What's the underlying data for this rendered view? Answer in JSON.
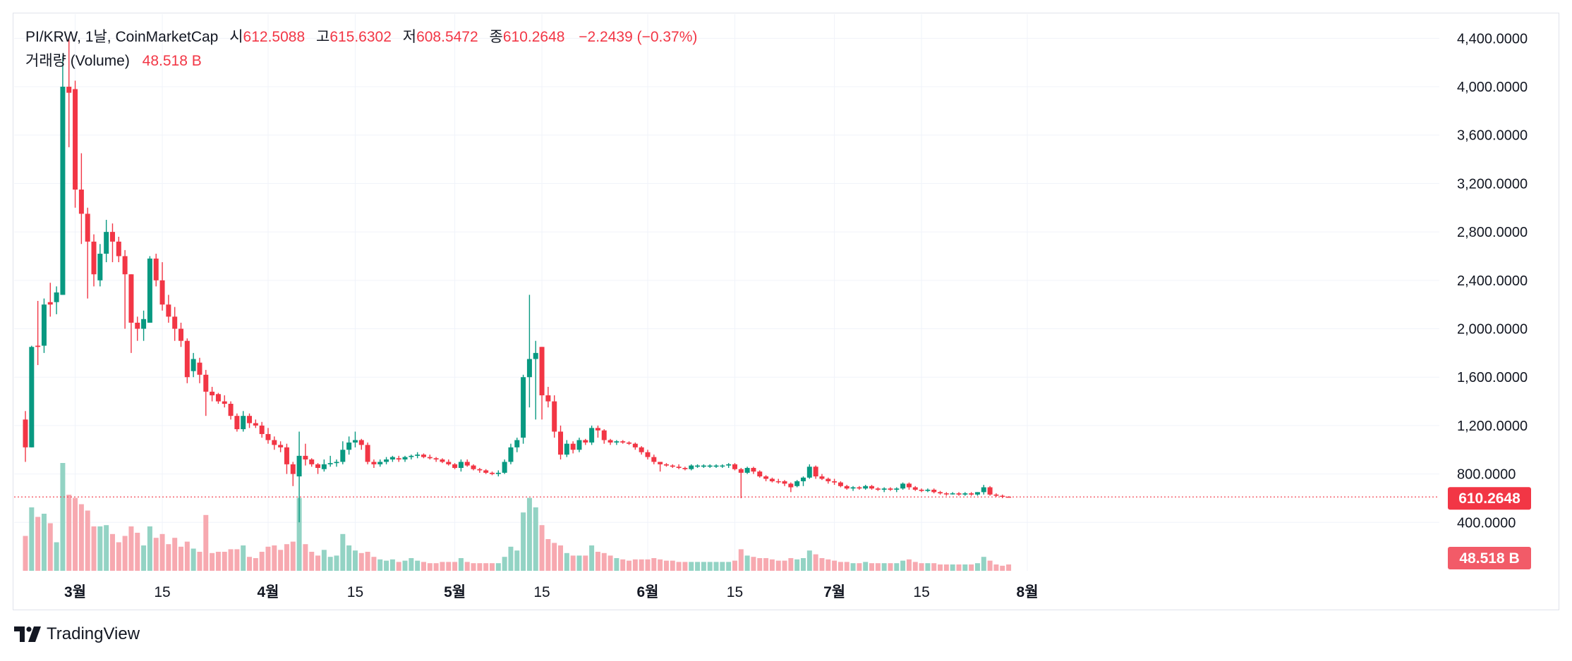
{
  "header": {
    "symbol_line": "PI/KRW, 1날, CoinMarketCap",
    "open_label": "시",
    "open_value": "612.5088",
    "high_label": "고",
    "high_value": "615.6302",
    "low_label": "저",
    "low_value": "608.5472",
    "close_label": "종",
    "close_value": "610.2648",
    "change": "−2.2439 (−0.37%)",
    "volume_label": "거래량 (Volume)",
    "volume_value": "48.518 B"
  },
  "brand": {
    "name": "TradingView",
    "icon": "tradingview-logo-icon"
  },
  "colors": {
    "up": "#089981",
    "down": "#f23645",
    "up_volume": "#93d3c4",
    "down_volume": "#f7a9b0",
    "grid": "#f0f3fa"
  },
  "chart_data": {
    "type": "candlestick",
    "price_axis_ticks": [
      400,
      800,
      1200,
      1600,
      2000,
      2400,
      2800,
      3200,
      3600,
      4000,
      4400
    ],
    "price_axis_labels": [
      "400.0000",
      "800.0000",
      "1,200.0000",
      "1,600.0000",
      "2,000.0000",
      "2,400.0000",
      "2,800.0000",
      "3,200.0000",
      "3,600.0000",
      "4,000.0000",
      "4,400.0000"
    ],
    "ylim": [
      0,
      4600
    ],
    "time_axis_ticks": [
      {
        "label": "3월",
        "day": 8,
        "major": true
      },
      {
        "label": "15",
        "day": 22,
        "major": false
      },
      {
        "label": "4월",
        "day": 39,
        "major": true
      },
      {
        "label": "15",
        "day": 53,
        "major": false
      },
      {
        "label": "5월",
        "day": 69,
        "major": true
      },
      {
        "label": "15",
        "day": 83,
        "major": false
      },
      {
        "label": "6월",
        "day": 100,
        "major": true
      },
      {
        "label": "15",
        "day": 114,
        "major": false
      },
      {
        "label": "7월",
        "day": 130,
        "major": true
      },
      {
        "label": "15",
        "day": 144,
        "major": false
      },
      {
        "label": "8월",
        "day": 161,
        "major": true
      }
    ],
    "last_price": {
      "value": 610.2648,
      "label": "610.2648"
    },
    "last_volume": {
      "label": "48.518 B"
    },
    "candles": [
      [
        1250,
        1320,
        900,
        1020,
        0.55,
        0
      ],
      [
        1020,
        1860,
        1020,
        1850,
        1.0,
        1
      ],
      [
        1850,
        2230,
        1700,
        1860,
        0.85,
        0
      ],
      [
        1860,
        2250,
        1800,
        2200,
        0.9,
        1
      ],
      [
        2200,
        2380,
        2100,
        2220,
        0.75,
        0
      ],
      [
        2220,
        2350,
        2120,
        2300,
        0.45,
        1
      ],
      [
        2280,
        4250,
        2280,
        4000,
        1.7,
        1
      ],
      [
        4000,
        4400,
        3500,
        3950,
        1.2,
        0
      ],
      [
        3980,
        4050,
        3000,
        3150,
        1.15,
        0
      ],
      [
        3150,
        3450,
        2700,
        2950,
        1.05,
        0
      ],
      [
        2950,
        3000,
        2250,
        2720,
        0.95,
        0
      ],
      [
        2720,
        2780,
        2350,
        2450,
        0.7,
        0
      ],
      [
        2400,
        2700,
        2350,
        2620,
        0.7,
        1
      ],
      [
        2620,
        2900,
        2550,
        2800,
        0.72,
        1
      ],
      [
        2800,
        2870,
        2550,
        2720,
        0.58,
        0
      ],
      [
        2720,
        2760,
        2550,
        2600,
        0.45,
        0
      ],
      [
        2600,
        2650,
        2000,
        2450,
        0.55,
        0
      ],
      [
        2450,
        2450,
        1800,
        2050,
        0.7,
        0
      ],
      [
        2050,
        2100,
        1900,
        2000,
        0.6,
        0
      ],
      [
        2000,
        2150,
        1900,
        2080,
        0.4,
        1
      ],
      [
        2050,
        2600,
        2050,
        2580,
        0.7,
        1
      ],
      [
        2580,
        2620,
        2350,
        2400,
        0.52,
        0
      ],
      [
        2400,
        2550,
        2150,
        2200,
        0.58,
        0
      ],
      [
        2200,
        2280,
        2050,
        2100,
        0.42,
        0
      ],
      [
        2100,
        2180,
        1900,
        2000,
        0.52,
        0
      ],
      [
        2000,
        2050,
        1850,
        1900,
        0.38,
        0
      ],
      [
        1900,
        1920,
        1550,
        1600,
        0.46,
        0
      ],
      [
        1650,
        1800,
        1600,
        1750,
        0.35,
        1
      ],
      [
        1720,
        1760,
        1550,
        1620,
        0.3,
        0
      ],
      [
        1620,
        1660,
        1280,
        1480,
        0.88,
        0
      ],
      [
        1480,
        1520,
        1400,
        1450,
        0.28,
        0
      ],
      [
        1460,
        1470,
        1380,
        1400,
        0.3,
        0
      ],
      [
        1400,
        1450,
        1350,
        1380,
        0.3,
        0
      ],
      [
        1380,
        1400,
        1250,
        1280,
        0.34,
        0
      ],
      [
        1280,
        1300,
        1150,
        1170,
        0.34,
        0
      ],
      [
        1170,
        1320,
        1150,
        1280,
        0.4,
        1
      ],
      [
        1280,
        1300,
        1180,
        1220,
        0.22,
        0
      ],
      [
        1220,
        1250,
        1180,
        1200,
        0.2,
        0
      ],
      [
        1200,
        1230,
        1100,
        1130,
        0.3,
        0
      ],
      [
        1130,
        1180,
        1050,
        1080,
        0.38,
        0
      ],
      [
        1080,
        1110,
        1000,
        1040,
        0.4,
        0
      ],
      [
        1040,
        1070,
        980,
        1020,
        0.33,
        0
      ],
      [
        1020,
        1050,
        800,
        880,
        0.42,
        0
      ],
      [
        880,
        900,
        700,
        800,
        0.46,
        0
      ],
      [
        780,
        1150,
        400,
        950,
        1.15,
        1
      ],
      [
        950,
        1050,
        870,
        920,
        0.42,
        0
      ],
      [
        920,
        930,
        860,
        880,
        0.3,
        0
      ],
      [
        880,
        890,
        800,
        850,
        0.24,
        0
      ],
      [
        840,
        920,
        820,
        880,
        0.33,
        1
      ],
      [
        880,
        950,
        860,
        890,
        0.22,
        1
      ],
      [
        890,
        920,
        860,
        900,
        0.24,
        1
      ],
      [
        900,
        1070,
        880,
        1000,
        0.58,
        1
      ],
      [
        1000,
        1110,
        960,
        1060,
        0.4,
        1
      ],
      [
        1060,
        1150,
        1020,
        1080,
        0.32,
        1
      ],
      [
        1080,
        1090,
        1000,
        1040,
        0.28,
        0
      ],
      [
        1040,
        1060,
        880,
        900,
        0.3,
        0
      ],
      [
        900,
        920,
        850,
        880,
        0.22,
        0
      ],
      [
        880,
        920,
        860,
        900,
        0.18,
        1
      ],
      [
        900,
        940,
        880,
        920,
        0.16,
        1
      ],
      [
        920,
        950,
        900,
        940,
        0.18,
        1
      ],
      [
        930,
        950,
        900,
        920,
        0.14,
        0
      ],
      [
        920,
        950,
        900,
        940,
        0.16,
        1
      ],
      [
        940,
        960,
        920,
        950,
        0.2,
        1
      ],
      [
        950,
        980,
        930,
        960,
        0.16,
        1
      ],
      [
        960,
        970,
        930,
        940,
        0.14,
        0
      ],
      [
        940,
        960,
        920,
        930,
        0.12,
        0
      ],
      [
        930,
        940,
        900,
        920,
        0.12,
        0
      ],
      [
        920,
        930,
        890,
        900,
        0.14,
        0
      ],
      [
        900,
        920,
        870,
        880,
        0.14,
        0
      ],
      [
        880,
        890,
        840,
        850,
        0.14,
        0
      ],
      [
        850,
        920,
        820,
        900,
        0.2,
        1
      ],
      [
        900,
        920,
        860,
        870,
        0.14,
        0
      ],
      [
        870,
        880,
        830,
        840,
        0.12,
        0
      ],
      [
        840,
        850,
        810,
        830,
        0.12,
        0
      ],
      [
        830,
        840,
        800,
        810,
        0.12,
        0
      ],
      [
        810,
        820,
        790,
        800,
        0.12,
        0
      ],
      [
        800,
        830,
        780,
        810,
        0.12,
        1
      ],
      [
        810,
        920,
        800,
        900,
        0.22,
        1
      ],
      [
        900,
        1050,
        880,
        1020,
        0.38,
        1
      ],
      [
        1020,
        1100,
        980,
        1080,
        0.32,
        1
      ],
      [
        1100,
        1620,
        1050,
        1600,
        0.92,
        1
      ],
      [
        1600,
        2280,
        1350,
        1750,
        1.15,
        1
      ],
      [
        1750,
        1900,
        1250,
        1800,
        1.0,
        1
      ],
      [
        1850,
        1850,
        1250,
        1450,
        0.72,
        0
      ],
      [
        1450,
        1520,
        1350,
        1400,
        0.5,
        0
      ],
      [
        1400,
        1450,
        1100,
        1150,
        0.44,
        0
      ],
      [
        1150,
        1200,
        920,
        960,
        0.4,
        0
      ],
      [
        960,
        1080,
        940,
        1050,
        0.28,
        1
      ],
      [
        1050,
        1070,
        970,
        1000,
        0.24,
        0
      ],
      [
        1000,
        1100,
        980,
        1080,
        0.24,
        1
      ],
      [
        1080,
        1090,
        1040,
        1060,
        0.24,
        0
      ],
      [
        1060,
        1200,
        1040,
        1180,
        0.4,
        1
      ],
      [
        1180,
        1200,
        1100,
        1160,
        0.3,
        0
      ],
      [
        1160,
        1170,
        1050,
        1080,
        0.28,
        0
      ],
      [
        1080,
        1090,
        1040,
        1060,
        0.24,
        0
      ],
      [
        1060,
        1080,
        1040,
        1070,
        0.2,
        1
      ],
      [
        1070,
        1080,
        1050,
        1060,
        0.18,
        0
      ],
      [
        1060,
        1070,
        1040,
        1050,
        0.16,
        0
      ],
      [
        1050,
        1060,
        1000,
        1020,
        0.18,
        0
      ],
      [
        1020,
        1030,
        960,
        980,
        0.18,
        0
      ],
      [
        980,
        1000,
        920,
        940,
        0.18,
        0
      ],
      [
        940,
        960,
        880,
        900,
        0.2,
        0
      ],
      [
        900,
        900,
        820,
        880,
        0.18,
        0
      ],
      [
        880,
        890,
        860,
        870,
        0.16,
        0
      ],
      [
        870,
        880,
        850,
        860,
        0.16,
        0
      ],
      [
        860,
        880,
        840,
        850,
        0.14,
        0
      ],
      [
        850,
        860,
        830,
        840,
        0.14,
        0
      ],
      [
        840,
        880,
        830,
        870,
        0.14,
        1
      ],
      [
        870,
        880,
        850,
        860,
        0.14,
        1
      ],
      [
        860,
        880,
        850,
        870,
        0.14,
        1
      ],
      [
        870,
        880,
        850,
        860,
        0.14,
        1
      ],
      [
        860,
        880,
        850,
        870,
        0.14,
        1
      ],
      [
        870,
        880,
        850,
        870,
        0.14,
        1
      ],
      [
        870,
        890,
        850,
        880,
        0.14,
        1
      ],
      [
        880,
        890,
        830,
        840,
        0.16,
        0
      ],
      [
        840,
        850,
        600,
        810,
        0.34,
        0
      ],
      [
        810,
        860,
        800,
        850,
        0.24,
        1
      ],
      [
        850,
        860,
        800,
        820,
        0.22,
        0
      ],
      [
        820,
        830,
        770,
        780,
        0.2,
        0
      ],
      [
        780,
        790,
        740,
        760,
        0.2,
        0
      ],
      [
        760,
        770,
        730,
        740,
        0.18,
        0
      ],
      [
        740,
        760,
        720,
        740,
        0.16,
        0
      ],
      [
        740,
        750,
        700,
        720,
        0.16,
        0
      ],
      [
        720,
        730,
        650,
        690,
        0.2,
        0
      ],
      [
        700,
        750,
        690,
        740,
        0.18,
        1
      ],
      [
        740,
        780,
        700,
        770,
        0.2,
        1
      ],
      [
        770,
        880,
        760,
        860,
        0.32,
        1
      ],
      [
        860,
        870,
        760,
        780,
        0.26,
        0
      ],
      [
        780,
        800,
        750,
        760,
        0.2,
        0
      ],
      [
        760,
        770,
        720,
        740,
        0.18,
        0
      ],
      [
        740,
        760,
        710,
        730,
        0.16,
        0
      ],
      [
        730,
        740,
        690,
        700,
        0.14,
        0
      ],
      [
        700,
        710,
        670,
        680,
        0.14,
        0
      ],
      [
        680,
        700,
        660,
        690,
        0.12,
        1
      ],
      [
        690,
        700,
        670,
        680,
        0.12,
        0
      ],
      [
        680,
        710,
        670,
        700,
        0.14,
        1
      ],
      [
        700,
        710,
        670,
        680,
        0.12,
        0
      ],
      [
        680,
        690,
        660,
        670,
        0.12,
        0
      ],
      [
        670,
        690,
        650,
        680,
        0.12,
        1
      ],
      [
        680,
        690,
        660,
        670,
        0.12,
        0
      ],
      [
        670,
        690,
        650,
        680,
        0.12,
        1
      ],
      [
        680,
        730,
        670,
        720,
        0.16,
        1
      ],
      [
        720,
        730,
        670,
        690,
        0.18,
        0
      ],
      [
        690,
        700,
        660,
        670,
        0.14,
        0
      ],
      [
        670,
        680,
        650,
        660,
        0.12,
        0
      ],
      [
        660,
        680,
        650,
        670,
        0.12,
        1
      ],
      [
        670,
        680,
        640,
        650,
        0.12,
        0
      ],
      [
        650,
        660,
        630,
        640,
        0.1,
        0
      ],
      [
        640,
        650,
        620,
        640,
        0.1,
        0
      ],
      [
        640,
        650,
        630,
        640,
        0.1,
        1
      ],
      [
        640,
        650,
        620,
        630,
        0.1,
        0
      ],
      [
        630,
        650,
        620,
        640,
        0.1,
        1
      ],
      [
        640,
        650,
        620,
        630,
        0.1,
        0
      ],
      [
        630,
        650,
        620,
        650,
        0.12,
        1
      ],
      [
        650,
        710,
        630,
        690,
        0.22,
        1
      ],
      [
        690,
        700,
        620,
        630,
        0.16,
        0
      ],
      [
        630,
        640,
        610,
        620,
        0.1,
        0
      ],
      [
        620,
        630,
        600,
        615,
        0.08,
        0
      ],
      [
        612.5,
        615.6,
        608.5,
        610.26,
        0.1,
        0
      ]
    ]
  }
}
